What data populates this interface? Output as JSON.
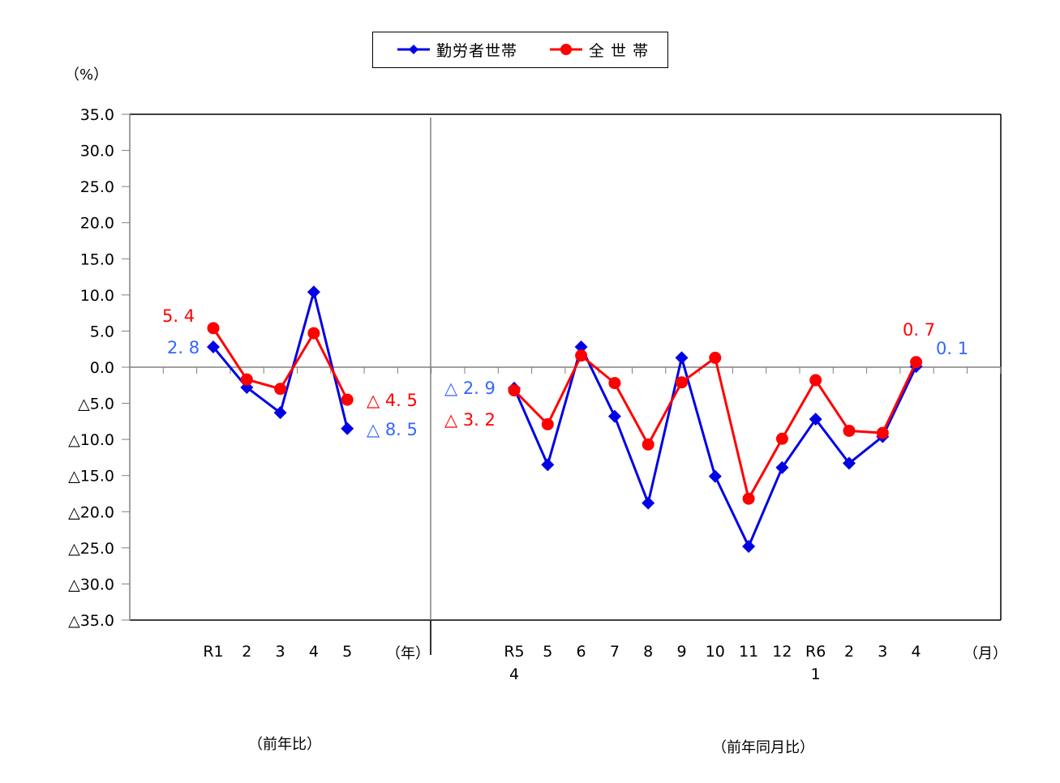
{
  "unit_label": "（%）",
  "legend": {
    "series_workers": "勤労者世帯",
    "series_all": "全 世 帯"
  },
  "x_unit_left": "（年）",
  "x_unit_right": "（月）",
  "footer": {
    "left": "（前年比）",
    "right": "（前年同月比）"
  },
  "colors": {
    "workers": "#0000E6",
    "all": "#FF0000",
    "workers_label": "#3366FF",
    "all_label": "#FF0000",
    "axis": "#808080",
    "frame": "#000000"
  },
  "chart_data": {
    "type": "line",
    "title": "",
    "xlabel": "",
    "ylabel": "（%）",
    "ylim": [
      -35,
      35
    ],
    "y_ticks": [
      35,
      30,
      25,
      20,
      15,
      10,
      5,
      0,
      -5,
      -10,
      -15,
      -20,
      -25,
      -30,
      -35
    ],
    "y_tick_labels": [
      "35.0",
      "30.0",
      "25.0",
      "20.0",
      "15.0",
      "10.0",
      "5.0",
      "0.0",
      "△5.0",
      "△10.0",
      "△15.0",
      "△20.0",
      "△25.0",
      "△30.0",
      "△35.0"
    ],
    "negative_prefix": "△",
    "grid": false,
    "legend_position": "top",
    "panels": [
      {
        "name": "annual",
        "caption": "（前年比）",
        "x_unit": "（年）",
        "categories": [
          "R1",
          "2",
          "3",
          "4",
          "5"
        ],
        "series": [
          {
            "name": "勤労者世帯",
            "marker": "diamond",
            "values": [
              2.8,
              -2.8,
              -6.3,
              10.4,
              -8.5
            ]
          },
          {
            "name": "全世帯",
            "marker": "circle",
            "values": [
              5.4,
              -1.7,
              -3.0,
              4.7,
              -4.5
            ]
          }
        ]
      },
      {
        "name": "monthly",
        "caption": "（前年同月比）",
        "x_unit": "（月）",
        "categories": [
          "R5\n4",
          "5",
          "6",
          "7",
          "8",
          "9",
          "10",
          "11",
          "12",
          "R6\n1",
          "2",
          "3",
          "4"
        ],
        "series": [
          {
            "name": "勤労者世帯",
            "marker": "diamond",
            "values": [
              -2.9,
              -13.5,
              2.8,
              -6.8,
              -18.8,
              1.3,
              -15.1,
              -24.8,
              -13.9,
              -7.2,
              -13.3,
              -9.6,
              0.1
            ]
          },
          {
            "name": "全世帯",
            "marker": "circle",
            "values": [
              -3.2,
              -7.9,
              1.6,
              -2.2,
              -10.7,
              -2.1,
              1.3,
              -18.2,
              -9.9,
              -1.8,
              -8.8,
              -9.1,
              0.7
            ]
          }
        ]
      }
    ],
    "annotations": [
      {
        "text": "5.4",
        "series": "全世帯",
        "panel": "annual",
        "point": "R1"
      },
      {
        "text": "2.8",
        "series": "勤労者世帯",
        "panel": "annual",
        "point": "R1"
      },
      {
        "text": "△ 4.5",
        "series": "全世帯",
        "panel": "annual",
        "point": "5"
      },
      {
        "text": "△ 8.5",
        "series": "勤労者世帯",
        "panel": "annual",
        "point": "5"
      },
      {
        "text": "△ 2.9",
        "series": "勤労者世帯",
        "panel": "monthly",
        "point": "R5 4"
      },
      {
        "text": "△ 3.2",
        "series": "全世帯",
        "panel": "monthly",
        "point": "R5 4"
      },
      {
        "text": "0.7",
        "series": "全世帯",
        "panel": "monthly",
        "point": "4"
      },
      {
        "text": "0.1",
        "series": "勤労者世帯",
        "panel": "monthly",
        "point": "4"
      }
    ]
  },
  "labels": {
    "r1_all": "5. 4",
    "r1_workers": "2. 8",
    "y5_all": "△  4. 5",
    "y5_workers": "△  8. 5",
    "m_first_workers": "△  2. 9",
    "m_first_all": "△  3. 2",
    "m_last_all": "0. 7",
    "m_last_workers": "0. 1"
  }
}
